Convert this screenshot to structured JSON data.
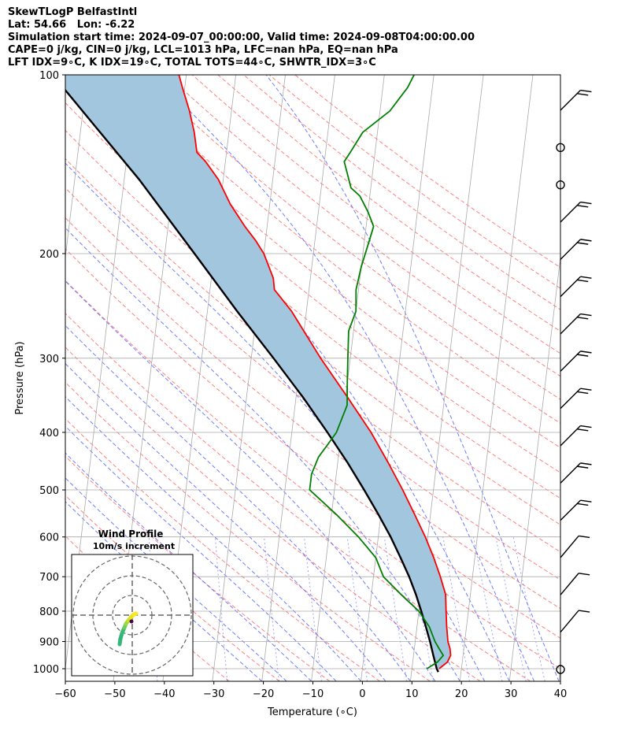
{
  "header": {
    "line1": "SkewTLogP BelfastIntl",
    "line2": "Lat: 54.66   Lon: -6.22",
    "line3": "Simulation start time: 2024-09-07_00:00:00, Valid time: 2024-09-08T04:00:00.00",
    "line4": "CAPE=0 j/kg, CIN=0 j/kg, LCL=1013 hPa, LFC=nan hPa, EQ=nan hPa",
    "line5": "LFT IDX=9∘C, K IDX=19∘C, TOTAL TOTS=44∘C, SHWTR_IDX=3∘C"
  },
  "chart_data": {
    "type": "line",
    "subtype": "skew-t log-p diagram",
    "xlabel": "Temperature (∘C)",
    "ylabel": "Pressure (hPa)",
    "xlim": [
      -60,
      40
    ],
    "ylim": [
      1050,
      100
    ],
    "y_scale": "log",
    "x_ticks": [
      -60,
      -50,
      -40,
      -30,
      -20,
      -10,
      0,
      10,
      20,
      30,
      40
    ],
    "y_ticks": [
      1000,
      900,
      800,
      700,
      600,
      500,
      400,
      300,
      200,
      100
    ],
    "grid": true,
    "colors": {
      "temperature": "#ff0000",
      "dewpoint": "#008000",
      "parcel": "#000000",
      "shading": "#a2c6de",
      "dry_adiabat": "#ff6a6a",
      "moist_adiabat": "#5566ff",
      "mixing_ratio": "#6666ee",
      "isotherm": "#aaaaaa"
    },
    "series": [
      {
        "role": "temperature",
        "points": [
          [
            1000,
            15.5
          ],
          [
            975,
            17
          ],
          [
            950,
            17.5
          ],
          [
            925,
            17.2
          ],
          [
            900,
            16.6
          ],
          [
            850,
            16
          ],
          [
            800,
            15.5
          ],
          [
            750,
            15
          ],
          [
            700,
            13.5
          ],
          [
            650,
            11.7
          ],
          [
            600,
            9.5
          ],
          [
            550,
            6.8
          ],
          [
            500,
            3.8
          ],
          [
            450,
            0.2
          ],
          [
            400,
            -4
          ],
          [
            350,
            -9.5
          ],
          [
            300,
            -16
          ],
          [
            250,
            -23
          ],
          [
            230,
            -27
          ],
          [
            220,
            -27.5
          ],
          [
            200,
            -30
          ],
          [
            190,
            -32
          ],
          [
            180,
            -34.5
          ],
          [
            165,
            -38
          ],
          [
            150,
            -41
          ],
          [
            140,
            -44
          ],
          [
            135,
            -46
          ],
          [
            125,
            -47
          ],
          [
            115,
            -48.5
          ],
          [
            105,
            -50.5
          ],
          [
            100,
            -51.5
          ]
        ]
      },
      {
        "role": "dewpoint",
        "points": [
          [
            1000,
            13
          ],
          [
            975,
            15
          ],
          [
            950,
            16
          ],
          [
            925,
            15
          ],
          [
            900,
            14
          ],
          [
            850,
            12.5
          ],
          [
            800,
            10
          ],
          [
            750,
            6
          ],
          [
            700,
            2
          ],
          [
            650,
            0
          ],
          [
            600,
            -4
          ],
          [
            550,
            -9
          ],
          [
            500,
            -15
          ],
          [
            470,
            -15
          ],
          [
            440,
            -14
          ],
          [
            420,
            -12.5
          ],
          [
            400,
            -11
          ],
          [
            360,
            -9.5
          ],
          [
            330,
            -10
          ],
          [
            300,
            -10.5
          ],
          [
            270,
            -11
          ],
          [
            250,
            -10
          ],
          [
            230,
            -10.5
          ],
          [
            210,
            -10
          ],
          [
            190,
            -9
          ],
          [
            180,
            -8.5
          ],
          [
            170,
            -10
          ],
          [
            160,
            -12
          ],
          [
            155,
            -14
          ],
          [
            140,
            -16
          ],
          [
            135,
            -15
          ],
          [
            125,
            -13
          ],
          [
            115,
            -8
          ],
          [
            105,
            -5
          ],
          [
            100,
            -4
          ]
        ]
      },
      {
        "role": "parcel",
        "points": [
          [
            1013,
            15.4
          ],
          [
            1000,
            15
          ],
          [
            950,
            14
          ],
          [
            900,
            13
          ],
          [
            850,
            11.8
          ],
          [
            800,
            10.5
          ],
          [
            750,
            9
          ],
          [
            700,
            7.2
          ],
          [
            650,
            5
          ],
          [
            600,
            2.5
          ],
          [
            550,
            -0.5
          ],
          [
            500,
            -4
          ],
          [
            450,
            -8
          ],
          [
            400,
            -12.8
          ],
          [
            350,
            -18.5
          ],
          [
            300,
            -25.5
          ],
          [
            250,
            -34
          ],
          [
            200,
            -44
          ],
          [
            150,
            -57
          ],
          [
            125,
            -66
          ],
          [
            100,
            -77
          ]
        ]
      }
    ],
    "wind_barbs_right_edge": 16,
    "hodograph": {
      "title": "Wind Profile",
      "subtitle": "10m/s increment",
      "ring_spacing_ms": 10
    }
  }
}
